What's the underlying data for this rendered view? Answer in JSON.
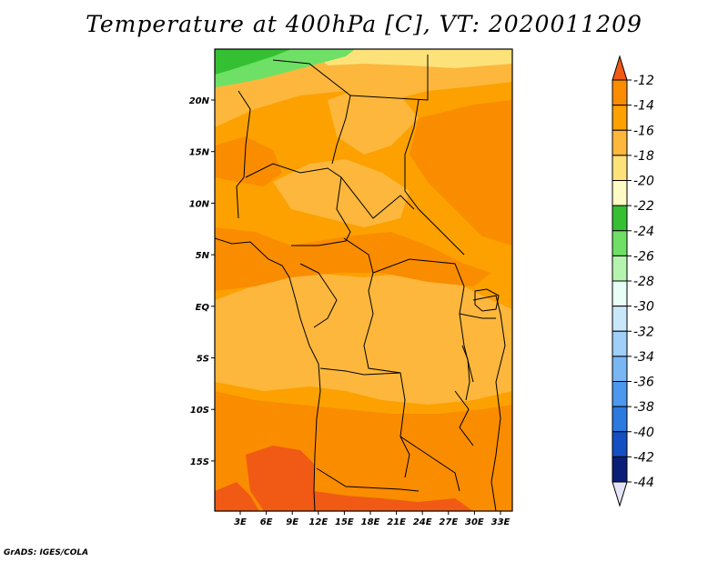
{
  "title": "Temperature at 400hPa [C], VT: 2020011209",
  "credit": "GrADS: IGES/COLA",
  "map": {
    "x_ticks": [
      "3E",
      "6E",
      "9E",
      "12E",
      "15E",
      "18E",
      "21E",
      "24E",
      "27E",
      "30E",
      "33E"
    ],
    "y_ticks": [
      "20N",
      "15N",
      "10N",
      "5N",
      "EQ",
      "5S",
      "10S",
      "15S"
    ]
  },
  "colorbar": {
    "labels": [
      "-12",
      "-14",
      "-16",
      "-18",
      "-20",
      "-22",
      "-24",
      "-26",
      "-28",
      "-30",
      "-32",
      "-34",
      "-36",
      "-38",
      "-40",
      "-42",
      "-44"
    ],
    "colors": [
      "#f05a14",
      "#fa8c00",
      "#fca100",
      "#fcb73c",
      "#fde27a",
      "#fffbc4",
      "#34c032",
      "#6ee066",
      "#b4f4ae",
      "#e8fff8",
      "#c8e8fa",
      "#a0d0f8",
      "#78b6f4",
      "#4c98ee",
      "#2a7ae0",
      "#1450c4",
      "#0a1e78",
      "#e4e4f6"
    ]
  },
  "colors": {
    "land_base": "#fca100",
    "warm": "#fa8c00",
    "cool": "#fcb73c",
    "warmest": "#f05a14",
    "pale": "#fde27a",
    "green": "#6ee066",
    "green_dark": "#34c032"
  }
}
